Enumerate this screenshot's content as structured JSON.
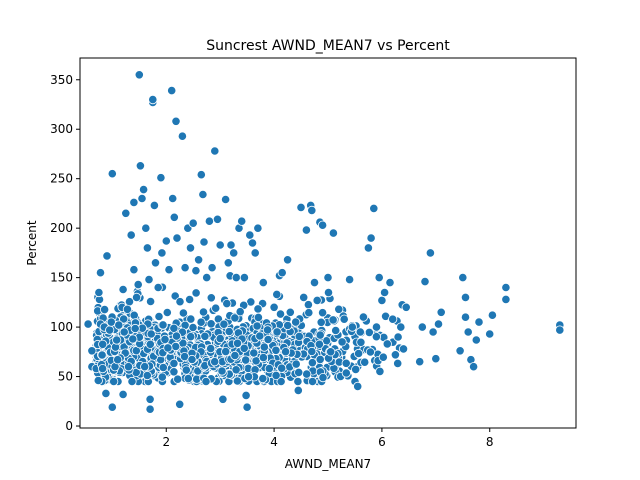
{
  "chart_data": {
    "type": "scatter",
    "title": "Suncrest AWND_MEAN7 vs Percent",
    "xlabel": "AWND_MEAN7",
    "ylabel": "Percent",
    "xlim": [
      0.4,
      9.6
    ],
    "ylim": [
      -2,
      372
    ],
    "xticks": [
      2,
      4,
      6,
      8
    ],
    "yticks": [
      0,
      50,
      100,
      150,
      200,
      250,
      300,
      350
    ],
    "grid": false,
    "marker_color": "#1f77b4",
    "marker_edge_color": "#ffffff",
    "points": [
      [
        0.55,
        103
      ],
      [
        0.62,
        76
      ],
      [
        0.62,
        60
      ],
      [
        0.7,
        58
      ],
      [
        0.75,
        135
      ],
      [
        0.78,
        155
      ],
      [
        0.78,
        103
      ],
      [
        0.8,
        62
      ],
      [
        0.82,
        58
      ],
      [
        0.85,
        100
      ],
      [
        0.88,
        33
      ],
      [
        0.9,
        172
      ],
      [
        0.95,
        97
      ],
      [
        0.98,
        105
      ],
      [
        1.0,
        255
      ],
      [
        1.0,
        19
      ],
      [
        1.05,
        60
      ],
      [
        1.08,
        87
      ],
      [
        1.1,
        67
      ],
      [
        1.12,
        102
      ],
      [
        1.18,
        120
      ],
      [
        1.2,
        32
      ],
      [
        1.2,
        138
      ],
      [
        1.22,
        95
      ],
      [
        1.25,
        215
      ],
      [
        1.28,
        118
      ],
      [
        1.3,
        60
      ],
      [
        1.35,
        193
      ],
      [
        1.38,
        88
      ],
      [
        1.4,
        226
      ],
      [
        1.4,
        158
      ],
      [
        1.45,
        130
      ],
      [
        1.48,
        143
      ],
      [
        1.5,
        355
      ],
      [
        1.52,
        263
      ],
      [
        1.55,
        230
      ],
      [
        1.58,
        239
      ],
      [
        1.6,
        60
      ],
      [
        1.62,
        200
      ],
      [
        1.65,
        180
      ],
      [
        1.68,
        148
      ],
      [
        1.7,
        27
      ],
      [
        1.7,
        17
      ],
      [
        1.72,
        93
      ],
      [
        1.75,
        327
      ],
      [
        1.75,
        330
      ],
      [
        1.78,
        223
      ],
      [
        1.8,
        165
      ],
      [
        1.85,
        140
      ],
      [
        1.9,
        251
      ],
      [
        1.92,
        175
      ],
      [
        2.0,
        187
      ],
      [
        2.05,
        158
      ],
      [
        2.1,
        339
      ],
      [
        2.12,
        230
      ],
      [
        2.15,
        211
      ],
      [
        2.18,
        308
      ],
      [
        2.2,
        190
      ],
      [
        2.25,
        22
      ],
      [
        2.3,
        293
      ],
      [
        2.35,
        160
      ],
      [
        2.4,
        200
      ],
      [
        2.45,
        180
      ],
      [
        2.5,
        205
      ],
      [
        2.55,
        157
      ],
      [
        2.6,
        168
      ],
      [
        2.65,
        254
      ],
      [
        2.68,
        234
      ],
      [
        2.7,
        186
      ],
      [
        2.75,
        150
      ],
      [
        2.8,
        207
      ],
      [
        2.85,
        160
      ],
      [
        2.9,
        278
      ],
      [
        2.95,
        209
      ],
      [
        3.0,
        183
      ],
      [
        3.05,
        27
      ],
      [
        3.1,
        229
      ],
      [
        3.15,
        165
      ],
      [
        3.2,
        183
      ],
      [
        3.25,
        175
      ],
      [
        3.3,
        150
      ],
      [
        3.35,
        200
      ],
      [
        3.4,
        207
      ],
      [
        3.45,
        150
      ],
      [
        3.48,
        31
      ],
      [
        3.5,
        19
      ],
      [
        3.55,
        193
      ],
      [
        3.6,
        185
      ],
      [
        3.65,
        175
      ],
      [
        3.7,
        200
      ],
      [
        3.8,
        145
      ],
      [
        4.0,
        120
      ],
      [
        4.05,
        133
      ],
      [
        4.1,
        152
      ],
      [
        4.15,
        155
      ],
      [
        4.25,
        168
      ],
      [
        4.3,
        115
      ],
      [
        4.4,
        105
      ],
      [
        4.45,
        36
      ],
      [
        4.5,
        221
      ],
      [
        4.55,
        130
      ],
      [
        4.6,
        198
      ],
      [
        4.68,
        223
      ],
      [
        4.7,
        218
      ],
      [
        4.75,
        145
      ],
      [
        4.8,
        127
      ],
      [
        4.85,
        206
      ],
      [
        4.9,
        203
      ],
      [
        5.0,
        150
      ],
      [
        5.05,
        75
      ],
      [
        5.1,
        195
      ],
      [
        5.2,
        118
      ],
      [
        5.3,
        108
      ],
      [
        5.4,
        148
      ],
      [
        5.45,
        100
      ],
      [
        5.5,
        45
      ],
      [
        5.55,
        40
      ],
      [
        5.6,
        95
      ],
      [
        5.75,
        180
      ],
      [
        5.8,
        190
      ],
      [
        5.85,
        220
      ],
      [
        5.9,
        100
      ],
      [
        5.95,
        150
      ],
      [
        6.0,
        127
      ],
      [
        6.05,
        135
      ],
      [
        6.1,
        83
      ],
      [
        6.15,
        145
      ],
      [
        6.2,
        108
      ],
      [
        6.25,
        72
      ],
      [
        6.3,
        90
      ],
      [
        6.35,
        100
      ],
      [
        6.4,
        78
      ],
      [
        6.45,
        120
      ],
      [
        6.7,
        65
      ],
      [
        6.75,
        100
      ],
      [
        6.8,
        146
      ],
      [
        6.9,
        175
      ],
      [
        6.95,
        95
      ],
      [
        7.0,
        68
      ],
      [
        7.05,
        103
      ],
      [
        7.1,
        115
      ],
      [
        7.45,
        76
      ],
      [
        7.5,
        150
      ],
      [
        7.55,
        130
      ],
      [
        7.55,
        110
      ],
      [
        7.6,
        95
      ],
      [
        7.65,
        67
      ],
      [
        7.7,
        60
      ],
      [
        7.75,
        87
      ],
      [
        7.8,
        105
      ],
      [
        8.0,
        93
      ],
      [
        8.05,
        112
      ],
      [
        8.3,
        140
      ],
      [
        8.3,
        128
      ],
      [
        9.3,
        102
      ],
      [
        9.3,
        97
      ]
    ],
    "dense_band": {
      "x_range": [
        0.7,
        6.5
      ],
      "y_center": 75,
      "y_spread": 28,
      "count": 1350,
      "seed": 7
    }
  }
}
